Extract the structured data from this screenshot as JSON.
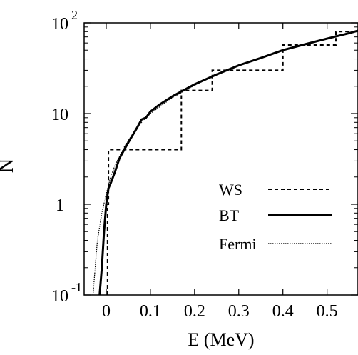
{
  "chart_data": {
    "type": "line",
    "xlabel": "E (MeV)",
    "ylabel": "N",
    "xlim": [
      -0.05,
      0.57
    ],
    "ylim": [
      0.1,
      100
    ],
    "yscale": "log",
    "x_ticks": [
      {
        "value": 0,
        "label": "0"
      },
      {
        "value": 0.1,
        "label": "0.1"
      },
      {
        "value": 0.2,
        "label": "0.2"
      },
      {
        "value": 0.3,
        "label": "0.3"
      },
      {
        "value": 0.4,
        "label": "0.4"
      },
      {
        "value": 0.5,
        "label": "0.5"
      }
    ],
    "y_ticks": [
      {
        "value": 0.1,
        "base": "10",
        "exp": "-1"
      },
      {
        "value": 1,
        "base": "1",
        "exp": ""
      },
      {
        "value": 10,
        "base": "10",
        "exp": ""
      },
      {
        "value": 100,
        "base": "10",
        "exp": "2"
      }
    ],
    "grid": false,
    "legend_position": "right",
    "series": [
      {
        "name": "WS",
        "style": "dashed",
        "points": [
          [
            0.003,
            0.1
          ],
          [
            0.003,
            1
          ],
          [
            0.005,
            1
          ],
          [
            0.005,
            4
          ],
          [
            0.17,
            4
          ],
          [
            0.17,
            18
          ],
          [
            0.24,
            18
          ],
          [
            0.24,
            30
          ],
          [
            0.4,
            30
          ],
          [
            0.4,
            57
          ],
          [
            0.52,
            57
          ],
          [
            0.52,
            80
          ],
          [
            0.57,
            80
          ]
        ]
      },
      {
        "name": "BT",
        "style": "solid",
        "points": [
          [
            -0.015,
            0.1
          ],
          [
            -0.01,
            0.2
          ],
          [
            -0.005,
            0.5
          ],
          [
            0.0,
            1.0
          ],
          [
            0.005,
            1.5
          ],
          [
            0.01,
            1.7
          ],
          [
            0.02,
            2.3
          ],
          [
            0.03,
            3.2
          ],
          [
            0.05,
            4.8
          ],
          [
            0.07,
            7.0
          ],
          [
            0.08,
            8.6
          ],
          [
            0.09,
            9.0
          ],
          [
            0.1,
            10.5
          ],
          [
            0.12,
            12.5
          ],
          [
            0.15,
            15.5
          ],
          [
            0.2,
            21.0
          ],
          [
            0.25,
            27.0
          ],
          [
            0.3,
            34.0
          ],
          [
            0.35,
            41.0
          ],
          [
            0.4,
            50.0
          ],
          [
            0.45,
            58.0
          ],
          [
            0.5,
            67.0
          ],
          [
            0.55,
            77.0
          ],
          [
            0.57,
            82.0
          ]
        ]
      },
      {
        "name": "Fermi",
        "style": "dotted",
        "points": [
          [
            -0.03,
            0.1
          ],
          [
            -0.025,
            0.2
          ],
          [
            -0.02,
            0.4
          ],
          [
            -0.01,
            0.8
          ],
          [
            0.0,
            1.3
          ],
          [
            0.01,
            2.0
          ],
          [
            0.02,
            2.7
          ],
          [
            0.04,
            4.2
          ],
          [
            0.06,
            6.0
          ],
          [
            0.08,
            8.0
          ],
          [
            0.1,
            10.0
          ],
          [
            0.15,
            15.0
          ],
          [
            0.2,
            20.5
          ],
          [
            0.25,
            27.0
          ],
          [
            0.3,
            34.0
          ],
          [
            0.35,
            41.5
          ],
          [
            0.4,
            50.0
          ],
          [
            0.45,
            58.5
          ],
          [
            0.5,
            67.5
          ],
          [
            0.55,
            77.0
          ],
          [
            0.57,
            81.0
          ]
        ]
      }
    ]
  }
}
